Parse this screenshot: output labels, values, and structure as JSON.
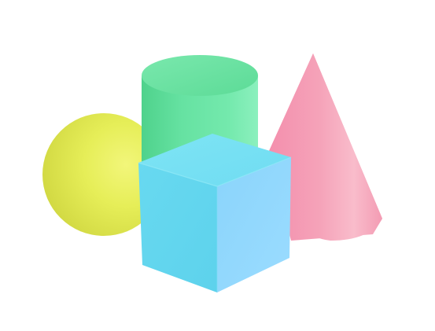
{
  "scene": {
    "background_color": "#ffffff",
    "objects": [
      {
        "name": "sphere",
        "color": "#e7ef5a"
      },
      {
        "name": "cylinder",
        "color": "#62e1a0"
      },
      {
        "name": "cone",
        "color": "#f49ab4"
      },
      {
        "name": "cube",
        "color": "#63d9f0"
      }
    ]
  }
}
